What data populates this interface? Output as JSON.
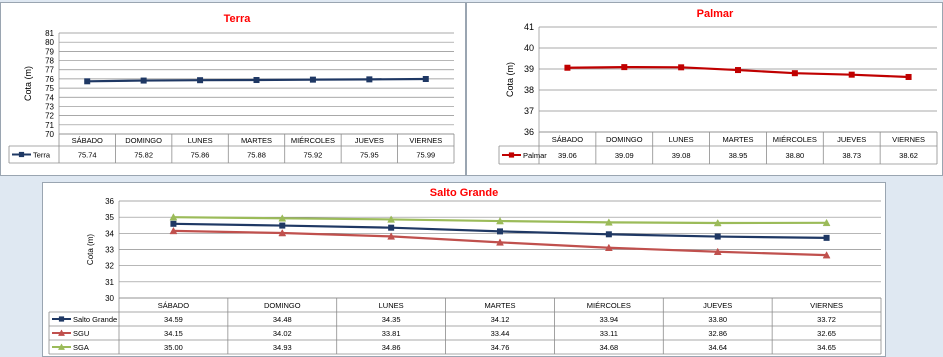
{
  "chart_data": [
    {
      "type": "line",
      "title": "Terra",
      "ylabel": "Cota (m)",
      "ylim": [
        70,
        81
      ],
      "yticks": [
        "70",
        "71",
        "72",
        "73",
        "74",
        "75",
        "76",
        "77",
        "78",
        "79",
        "80",
        "81"
      ],
      "categories": [
        "SÁBADO",
        "DOMINGO",
        "LUNES",
        "MARTES",
        "MIÉRCOLES",
        "JUEVES",
        "VIERNES"
      ],
      "series": [
        {
          "name": "Terra",
          "color": "#1f3864",
          "marker": "square",
          "values": [
            75.74,
            75.82,
            75.86,
            75.88,
            75.92,
            75.95,
            75.99
          ],
          "labels": [
            "75.74",
            "75.82",
            "75.86",
            "75.88",
            "75.92",
            "75.95",
            "75.99"
          ]
        }
      ],
      "legend": "data-table"
    },
    {
      "type": "line",
      "title": "Palmar",
      "ylabel": "Cota (m)",
      "ylim": [
        36,
        41
      ],
      "yticks": [
        "36",
        "37",
        "38",
        "39",
        "40",
        "41"
      ],
      "categories": [
        "SÁBADO",
        "DOMINGO",
        "LUNES",
        "MARTES",
        "MIÉRCOLES",
        "JUEVES",
        "VIERNES"
      ],
      "series": [
        {
          "name": "Palmar",
          "color": "#c00000",
          "marker": "square",
          "values": [
            39.06,
            39.09,
            39.08,
            38.95,
            38.8,
            38.73,
            38.62
          ],
          "labels": [
            "39.06",
            "39.09",
            "39.08",
            "38.95",
            "38.80",
            "38.73",
            "38.62"
          ]
        }
      ],
      "legend": "data-table"
    },
    {
      "type": "line",
      "title": "Salto Grande",
      "ylabel": "Cota (m)",
      "ylim": [
        30,
        36
      ],
      "yticks": [
        "30",
        "31",
        "32",
        "33",
        "34",
        "35",
        "36"
      ],
      "categories": [
        "SÁBADO",
        "DOMINGO",
        "LUNES",
        "MARTES",
        "MIÉRCOLES",
        "JUEVES",
        "VIERNES"
      ],
      "series": [
        {
          "name": "Salto Grande",
          "color": "#1f3864",
          "marker": "square",
          "values": [
            34.59,
            34.48,
            34.35,
            34.12,
            33.94,
            33.8,
            33.72
          ],
          "labels": [
            "34.59",
            "34.48",
            "34.35",
            "34.12",
            "33.94",
            "33.80",
            "33.72"
          ]
        },
        {
          "name": "SGU",
          "color": "#c0504d",
          "marker": "triangle",
          "values": [
            34.15,
            34.02,
            33.81,
            33.44,
            33.11,
            32.86,
            32.65
          ],
          "labels": [
            "34.15",
            "34.02",
            "33.81",
            "33.44",
            "33.11",
            "32.86",
            "32.65"
          ]
        },
        {
          "name": "SGA",
          "color": "#9bbb59",
          "marker": "triangle",
          "values": [
            35.0,
            34.93,
            34.86,
            34.76,
            34.68,
            34.64,
            34.65
          ],
          "labels": [
            "35.00",
            "34.93",
            "34.86",
            "34.76",
            "34.68",
            "34.64",
            "34.65"
          ]
        }
      ],
      "legend": "data-table"
    }
  ]
}
